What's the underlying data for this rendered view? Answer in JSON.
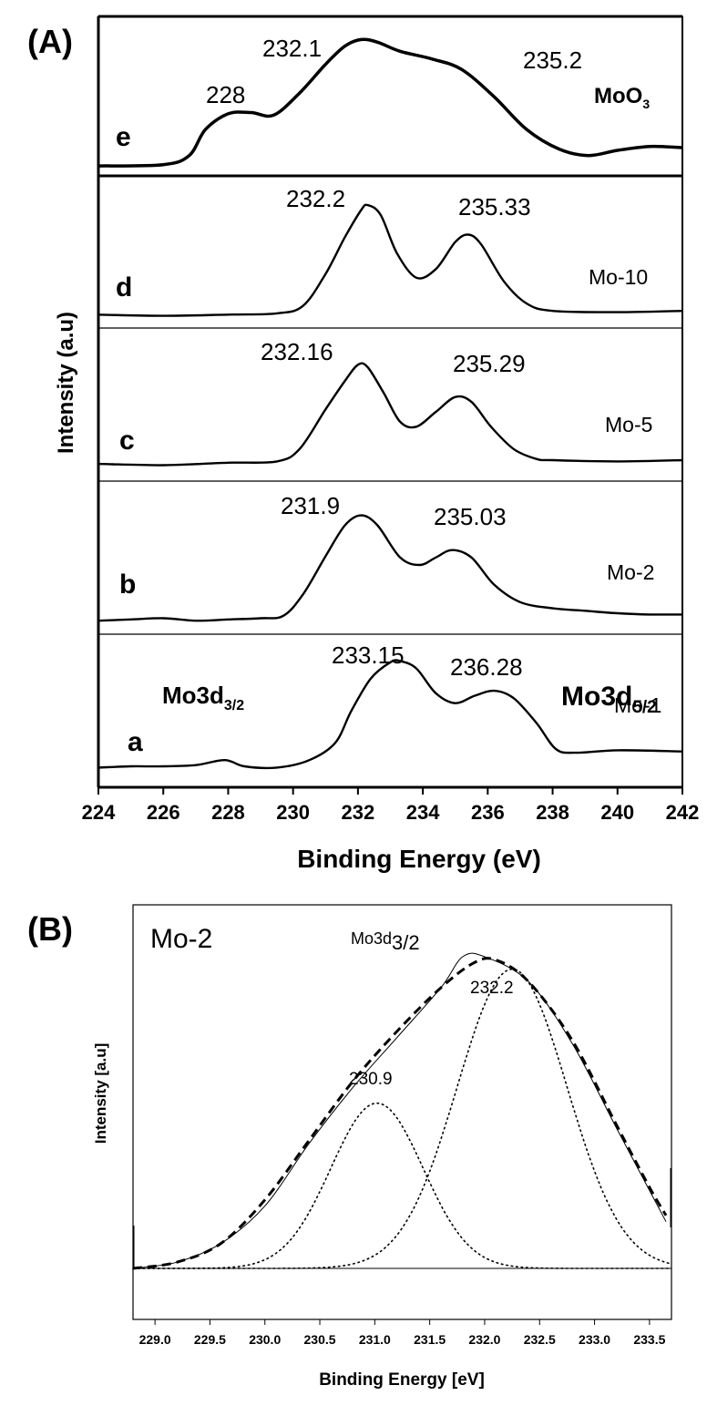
{
  "chart_data": [
    {
      "panel": "(A)",
      "type": "line",
      "xlabel": "Binding Energy (eV)",
      "ylabel": "Intensity (a.u)",
      "xlim": [
        224,
        242
      ],
      "xticks": [
        "224",
        "226",
        "228",
        "230",
        "232",
        "234",
        "236",
        "238",
        "240",
        "242"
      ],
      "subplots": [
        {
          "letter": "e",
          "name_main": "MoO",
          "name_sub": "3",
          "points": [
            [
              224,
              0.02
            ],
            [
              226,
              0.03
            ],
            [
              226.8,
              0.1
            ],
            [
              227.3,
              0.3
            ],
            [
              228,
              0.42
            ],
            [
              228.7,
              0.43
            ],
            [
              229.4,
              0.41
            ],
            [
              230.2,
              0.58
            ],
            [
              231,
              0.8
            ],
            [
              231.6,
              0.94
            ],
            [
              232.1,
              0.99
            ],
            [
              232.6,
              0.97
            ],
            [
              233.3,
              0.9
            ],
            [
              234.3,
              0.84
            ],
            [
              235.2,
              0.76
            ],
            [
              236.2,
              0.55
            ],
            [
              237.2,
              0.3
            ],
            [
              238.2,
              0.15
            ],
            [
              239.1,
              0.1
            ],
            [
              240,
              0.14
            ],
            [
              241,
              0.17
            ],
            [
              242,
              0.16
            ]
          ],
          "peaks": [
            {
              "x": 228,
              "label": "228"
            },
            {
              "x": 232.1,
              "label": "232.1"
            },
            {
              "x": 235.2,
              "label": "235.2"
            }
          ]
        },
        {
          "letter": "d",
          "name_main": "Mo-10",
          "name_sub": "",
          "points": [
            [
              224,
              0.05
            ],
            [
              226,
              0.04
            ],
            [
              228,
              0.05
            ],
            [
              229.5,
              0.06
            ],
            [
              230.3,
              0.12
            ],
            [
              231,
              0.38
            ],
            [
              231.6,
              0.68
            ],
            [
              232.1,
              0.9
            ],
            [
              232.3,
              0.94
            ],
            [
              232.7,
              0.86
            ],
            [
              233.2,
              0.55
            ],
            [
              233.8,
              0.35
            ],
            [
              234.4,
              0.42
            ],
            [
              235,
              0.64
            ],
            [
              235.4,
              0.7
            ],
            [
              235.8,
              0.62
            ],
            [
              236.5,
              0.32
            ],
            [
              237.2,
              0.14
            ],
            [
              238,
              0.08
            ],
            [
              240,
              0.07
            ],
            [
              242,
              0.08
            ]
          ],
          "peaks": [
            {
              "x": 232.2,
              "label": "232.2"
            },
            {
              "x": 235.33,
              "label": "235.33"
            }
          ]
        },
        {
          "letter": "c",
          "name_main": "Mo-5",
          "name_sub": "",
          "points": [
            [
              224,
              0.08
            ],
            [
              226,
              0.07
            ],
            [
              228,
              0.09
            ],
            [
              229.5,
              0.1
            ],
            [
              230.2,
              0.2
            ],
            [
              231,
              0.52
            ],
            [
              231.6,
              0.75
            ],
            [
              232,
              0.88
            ],
            [
              232.3,
              0.86
            ],
            [
              232.8,
              0.65
            ],
            [
              233.3,
              0.42
            ],
            [
              233.8,
              0.38
            ],
            [
              234.4,
              0.5
            ],
            [
              235,
              0.62
            ],
            [
              235.5,
              0.58
            ],
            [
              236.1,
              0.38
            ],
            [
              236.8,
              0.2
            ],
            [
              237.5,
              0.12
            ],
            [
              238,
              0.11
            ],
            [
              240,
              0.1
            ],
            [
              242,
              0.11
            ]
          ],
          "peaks": [
            {
              "x": 232.16,
              "label": "232.16"
            },
            {
              "x": 235.29,
              "label": "235.29"
            }
          ]
        },
        {
          "letter": "b",
          "name_main": "Mo-2",
          "name_sub": "",
          "points": [
            [
              224,
              0.05
            ],
            [
              225,
              0.06
            ],
            [
              226,
              0.07
            ],
            [
              227,
              0.05
            ],
            [
              228,
              0.06
            ],
            [
              229,
              0.07
            ],
            [
              229.7,
              0.09
            ],
            [
              230.3,
              0.26
            ],
            [
              231,
              0.57
            ],
            [
              231.6,
              0.82
            ],
            [
              232.1,
              0.9
            ],
            [
              232.6,
              0.82
            ],
            [
              233.3,
              0.56
            ],
            [
              233.9,
              0.5
            ],
            [
              234.4,
              0.56
            ],
            [
              234.9,
              0.62
            ],
            [
              235.5,
              0.56
            ],
            [
              236.2,
              0.34
            ],
            [
              237,
              0.2
            ],
            [
              238,
              0.15
            ],
            [
              239,
              0.13
            ],
            [
              240,
              0.11
            ],
            [
              241,
              0.1
            ],
            [
              242,
              0.1
            ]
          ],
          "peaks": [
            {
              "x": 231.9,
              "label": "231.9"
            },
            {
              "x": 235.03,
              "label": "235.03"
            }
          ]
        },
        {
          "letter": "a",
          "name_main": "Mo-1",
          "name_sub": "",
          "points": [
            [
              224,
              0.1
            ],
            [
              225,
              0.11
            ],
            [
              226,
              0.11
            ],
            [
              227,
              0.12
            ],
            [
              227.9,
              0.16
            ],
            [
              228.5,
              0.11
            ],
            [
              229.5,
              0.1
            ],
            [
              230.5,
              0.16
            ],
            [
              231.3,
              0.3
            ],
            [
              231.8,
              0.56
            ],
            [
              232.4,
              0.82
            ],
            [
              233,
              0.95
            ],
            [
              233.3,
              0.96
            ],
            [
              233.8,
              0.9
            ],
            [
              234.4,
              0.7
            ],
            [
              235,
              0.62
            ],
            [
              235.6,
              0.68
            ],
            [
              236.2,
              0.72
            ],
            [
              236.8,
              0.66
            ],
            [
              237.5,
              0.46
            ],
            [
              238.1,
              0.25
            ],
            [
              238.7,
              0.22
            ],
            [
              240,
              0.24
            ],
            [
              242,
              0.23
            ]
          ],
          "peaks": [
            {
              "x": 233.15,
              "label": "233.15"
            },
            {
              "x": 236.28,
              "label": "236.28"
            }
          ]
        }
      ],
      "annotations": [
        {
          "main": "Mo3d",
          "sub": "3/2"
        },
        {
          "main": "Mo3d",
          "sub": "5/2"
        }
      ]
    },
    {
      "panel": "(B)",
      "type": "line",
      "sample": "Mo-2",
      "xlabel": "Binding Energy [eV]",
      "ylabel": "Intensity [a.u]",
      "xlim": [
        228.8,
        233.7
      ],
      "xticks": [
        "229.0",
        "229.5",
        "230.0",
        "230.5",
        "231.0",
        "231.5",
        "232.0",
        "232.5",
        "233.0",
        "233.5"
      ],
      "annotation": {
        "main": "Mo3d",
        "sub": "3/2"
      },
      "peak_labels": [
        "230.9",
        "232.2"
      ],
      "measured": [
        [
          228.8,
          0.0
        ],
        [
          229.2,
          0.02
        ],
        [
          229.6,
          0.08
        ],
        [
          230.0,
          0.2
        ],
        [
          230.4,
          0.4
        ],
        [
          230.8,
          0.58
        ],
        [
          231.2,
          0.74
        ],
        [
          231.6,
          0.9
        ],
        [
          231.8,
          1.0
        ],
        [
          232.0,
          1.0
        ],
        [
          232.4,
          0.92
        ],
        [
          232.8,
          0.72
        ],
        [
          233.2,
          0.45
        ],
        [
          233.5,
          0.25
        ],
        [
          233.65,
          0.15
        ]
      ],
      "fit_envelope": [
        [
          228.8,
          0.0
        ],
        [
          229.2,
          0.02
        ],
        [
          229.6,
          0.08
        ],
        [
          230.0,
          0.22
        ],
        [
          230.4,
          0.41
        ],
        [
          230.8,
          0.6
        ],
        [
          231.2,
          0.76
        ],
        [
          231.6,
          0.9
        ],
        [
          231.9,
          0.98
        ],
        [
          232.1,
          0.99
        ],
        [
          232.4,
          0.92
        ],
        [
          232.8,
          0.73
        ],
        [
          233.2,
          0.46
        ],
        [
          233.5,
          0.26
        ],
        [
          233.65,
          0.17
        ]
      ],
      "components": [
        {
          "center": 231.02,
          "height": 0.53,
          "width": 0.42,
          "label": "230.9"
        },
        {
          "center": 232.25,
          "height": 0.96,
          "width": 0.5,
          "label": "232.2"
        }
      ]
    }
  ]
}
